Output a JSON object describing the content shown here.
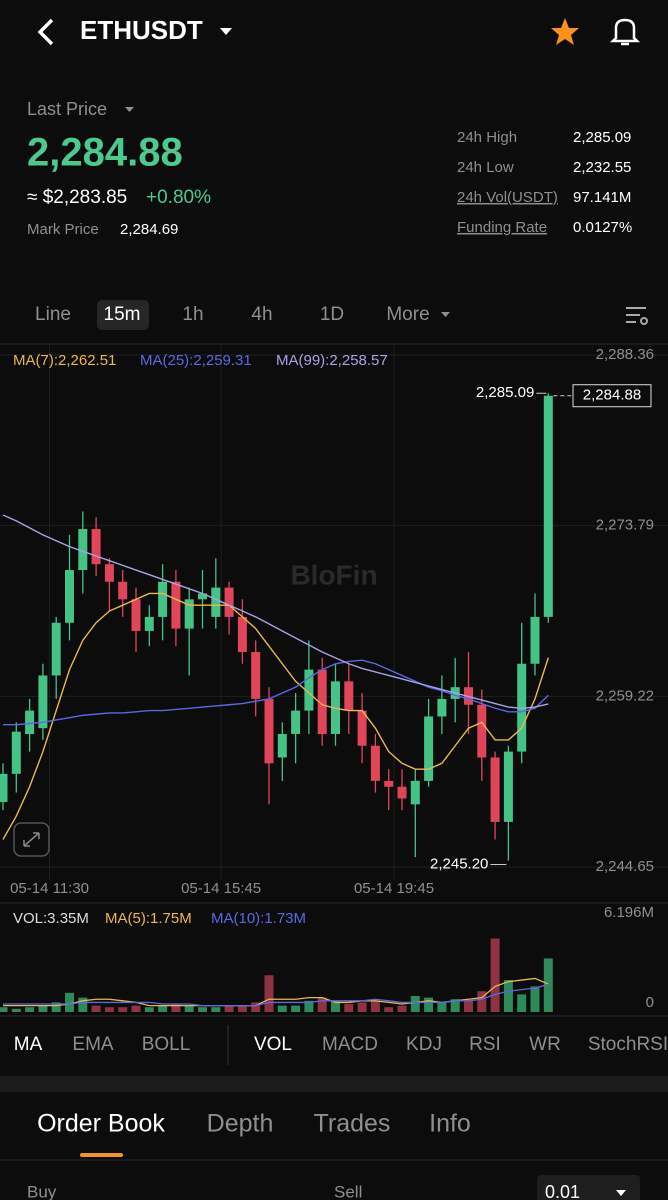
{
  "header": {
    "symbol": "ETHUSDT"
  },
  "summary": {
    "last_price_label": "Last Price",
    "last_price": "2,284.88",
    "usd_price": "≈ $2,283.85",
    "change": "+0.80%",
    "mark_price_label": "Mark Price",
    "mark_price": "2,284.69",
    "stats": [
      {
        "label": "24h High",
        "value": "2,285.09"
      },
      {
        "label": "24h Low",
        "value": "2,232.55"
      },
      {
        "label": "24h Vol(USDT)",
        "value": "97.141M"
      },
      {
        "label": "Funding Rate",
        "value": "0.0127%"
      }
    ]
  },
  "intervals": [
    "Line",
    "15m",
    "1h",
    "4h",
    "1D",
    "More"
  ],
  "watermark": "BloFin",
  "chart_data": [
    {
      "type": "candlestick",
      "up_color": "#45c286",
      "down_color": "#e0455a",
      "open": [
        2250.2,
        2252.6,
        2256,
        2256.5,
        2261,
        2265.5,
        2270,
        2273.5,
        2270.5,
        2269,
        2267.5,
        2264.8,
        2266,
        2269,
        2265,
        2267.5,
        2266,
        2268.5,
        2266,
        2263,
        2259,
        2254,
        2256,
        2258,
        2261.5,
        2256,
        2260.5,
        2258,
        2255,
        2252,
        2251.5,
        2250,
        2252,
        2257.5,
        2259,
        2260,
        2258.5,
        2254,
        2248.5,
        2254.5,
        2262,
        2266
      ],
      "high": [
        2253.5,
        2257,
        2259,
        2262,
        2266,
        2273,
        2275,
        2274.5,
        2271,
        2270,
        2268.5,
        2267,
        2270.5,
        2270,
        2268.5,
        2270,
        2271,
        2269,
        2267.5,
        2264,
        2260,
        2257,
        2259.5,
        2264,
        2262.5,
        2262,
        2262,
        2259.5,
        2256,
        2253,
        2253,
        2253,
        2259,
        2261,
        2262.5,
        2263,
        2259.8,
        2254.5,
        2255,
        2265.5,
        2268,
        2285.09
      ],
      "low": [
        2249.5,
        2251,
        2254.5,
        2255.5,
        2259,
        2264,
        2268,
        2269.5,
        2266.5,
        2266,
        2263,
        2263.5,
        2264,
        2263.5,
        2261,
        2265,
        2265,
        2264.5,
        2262,
        2257.5,
        2250,
        2252,
        2253.5,
        2256,
        2255,
        2255,
        2256,
        2253.5,
        2251,
        2249.5,
        2249.5,
        2245.5,
        2251.5,
        2256,
        2257,
        2256,
        2252,
        2247,
        2245.2,
        2253.5,
        2261,
        2265.5
      ],
      "close": [
        2252.6,
        2256.2,
        2258,
        2261,
        2265.5,
        2270,
        2273.5,
        2270.5,
        2269,
        2267.5,
        2264.8,
        2266,
        2269,
        2265,
        2267.5,
        2268,
        2268.5,
        2266,
        2263,
        2259,
        2253.5,
        2256,
        2258,
        2261.5,
        2256,
        2260.5,
        2258,
        2255,
        2252,
        2251.5,
        2250.5,
        2252,
        2257.5,
        2259,
        2260,
        2258.5,
        2254,
        2248.5,
        2254.5,
        2262,
        2266,
        2284.88
      ],
      "series": [
        {
          "name": "MA(7):2,262.51",
          "color": "#e9b949",
          "values": [
            2247,
            2249,
            2251.5,
            2254.5,
            2258,
            2261.5,
            2264,
            2265.5,
            2266.5,
            2267,
            2267.5,
            2268,
            2268,
            2267.5,
            2267,
            2267,
            2267,
            2267,
            2266,
            2265,
            2263.5,
            2262,
            2260.5,
            2259.5,
            2258.5,
            2258.2,
            2258,
            2258,
            2256.5,
            2254.5,
            2253.5,
            2253,
            2253,
            2253.5,
            2255,
            2256.5,
            2257,
            2255.5,
            2255.5,
            2256.5,
            2259,
            2262.51
          ]
        },
        {
          "name": "MA(25):2,259.31",
          "color": "#5a68e6",
          "values": [
            2256.8,
            2256.8,
            2256.9,
            2257,
            2257.2,
            2257.4,
            2257.6,
            2257.7,
            2257.8,
            2257.8,
            2257.9,
            2258,
            2258,
            2258.1,
            2258.2,
            2258.3,
            2258.4,
            2258.5,
            2258.6,
            2258.8,
            2259,
            2259.5,
            2260,
            2260.8,
            2261.5,
            2262,
            2262.2,
            2262.3,
            2262,
            2261.5,
            2261,
            2260.5,
            2260,
            2259.7,
            2259.3,
            2259,
            2258.6,
            2258.2,
            2257.9,
            2257.9,
            2258.2,
            2259.31
          ]
        },
        {
          "name": "MA(99):2,258.57",
          "color": "#a9a3e6",
          "values": [
            2274.7,
            2274.2,
            2273.6,
            2273,
            2272.5,
            2272,
            2271.6,
            2271.2,
            2270.8,
            2270.4,
            2270,
            2269.6,
            2269.2,
            2268.8,
            2268.4,
            2268,
            2267.5,
            2267,
            2266.5,
            2266,
            2265.4,
            2264.8,
            2264.2,
            2263.6,
            2263,
            2262.5,
            2262,
            2261.6,
            2261.3,
            2261,
            2260.7,
            2260.4,
            2260.1,
            2259.8,
            2259.5,
            2259.2,
            2258.9,
            2258.6,
            2258.3,
            2258.2,
            2258.3,
            2258.57
          ]
        }
      ],
      "ylim": [
        2243.54,
        2289.21
      ],
      "yticks": [
        {
          "value": 2288.36,
          "label": "2,288.36"
        },
        {
          "value": 2273.79,
          "label": "2,273.79"
        },
        {
          "value": 2259.22,
          "label": "2,259.22"
        },
        {
          "value": 2244.65,
          "label": "2,244.65"
        }
      ],
      "xticks": [
        {
          "value": 3.5,
          "label": "05-14 11:30"
        },
        {
          "value": 16.4,
          "label": "05-14 15:45"
        },
        {
          "value": 29.4,
          "label": "05-14 19:45"
        }
      ],
      "high_label": "2,285.09",
      "low_label": "2,245.20",
      "last_label": "2,284.88",
      "grid": true
    },
    {
      "type": "bar",
      "up_color": "#2f8a5a",
      "down_color": "#8e3344",
      "series": [
        {
          "name": "VOL:3.35M",
          "values": [
            0.3,
            0.2,
            0.3,
            0.4,
            0.6,
            1.2,
            0.9,
            0.4,
            0.3,
            0.3,
            0.4,
            0.3,
            0.4,
            0.5,
            0.4,
            0.3,
            0.3,
            0.4,
            0.4,
            0.6,
            2.3,
            0.4,
            0.4,
            0.7,
            0.9,
            0.7,
            0.5,
            0.6,
            0.7,
            0.3,
            0.4,
            1.0,
            0.9,
            0.6,
            0.8,
            0.7,
            1.3,
            4.6,
            2.0,
            1.1,
            1.6,
            3.35
          ]
        },
        {
          "name": "MA(5):1.75M",
          "color": "#e9b949",
          "values": [
            0.4,
            0.4,
            0.4,
            0.4,
            0.4,
            0.5,
            0.7,
            0.8,
            0.8,
            0.7,
            0.6,
            0.4,
            0.4,
            0.4,
            0.4,
            0.4,
            0.4,
            0.4,
            0.4,
            0.4,
            0.8,
            0.8,
            0.8,
            0.9,
            0.9,
            0.6,
            0.6,
            0.7,
            0.7,
            0.6,
            0.5,
            0.6,
            0.7,
            0.6,
            0.7,
            0.8,
            0.9,
            1.6,
            1.9,
            2.0,
            2.1,
            1.75
          ]
        },
        {
          "name": "MA(10):1.73M",
          "color": "#5a68e6",
          "values": [
            0.5,
            0.5,
            0.5,
            0.5,
            0.5,
            0.5,
            0.6,
            0.6,
            0.6,
            0.6,
            0.6,
            0.6,
            0.5,
            0.5,
            0.5,
            0.4,
            0.4,
            0.4,
            0.4,
            0.4,
            0.6,
            0.6,
            0.6,
            0.6,
            0.7,
            0.7,
            0.7,
            0.7,
            0.8,
            0.7,
            0.6,
            0.6,
            0.6,
            0.6,
            0.7,
            0.7,
            0.8,
            1.1,
            1.3,
            1.4,
            1.5,
            1.73
          ]
        }
      ],
      "ylim": [
        0,
        6.196
      ],
      "yticks": [
        0,
        {
          "value": 6.196,
          "label": "6.196M"
        }
      ]
    }
  ],
  "indicators": {
    "main": [
      "MA",
      "EMA",
      "BOLL"
    ],
    "sub": [
      "VOL",
      "MACD",
      "KDJ",
      "RSI",
      "WR",
      "StochRSI"
    ]
  },
  "tabs": [
    "Order Book",
    "Depth",
    "Trades",
    "Info"
  ],
  "order_book": {
    "buy": "Buy",
    "sell": "Sell",
    "precision": "0.01"
  }
}
